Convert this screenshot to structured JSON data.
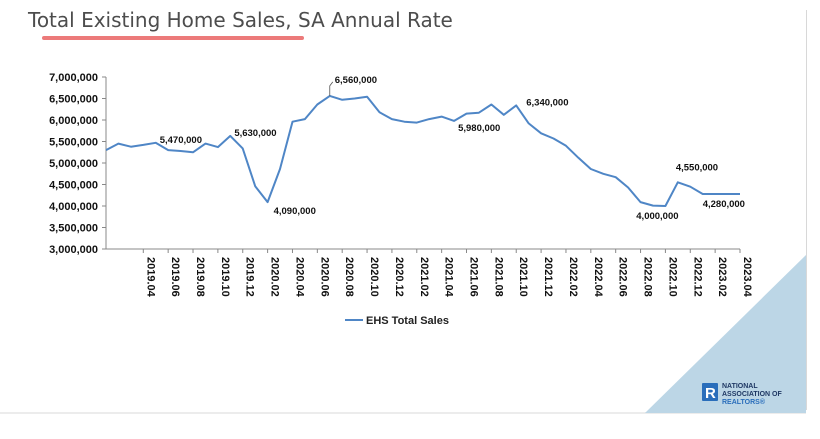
{
  "title": "Total Existing Home Sales, SA Annual Rate",
  "colors": {
    "series": "#4f86c6",
    "accent_underline": "#ec7a7a",
    "corner_triangle": "#bcd6e6",
    "logo_blue": "#2a6ebb"
  },
  "logo": {
    "lines": [
      "NATIONAL",
      "ASSOCIATION OF",
      "REALTORS®"
    ]
  },
  "chart_data": {
    "type": "line",
    "ylim": [
      3000000,
      7000000
    ],
    "yticks": [
      "3,000,000",
      "3,500,000",
      "4,000,000",
      "4,500,000",
      "5,000,000",
      "5,500,000",
      "6,000,000",
      "6,500,000",
      "7,000,000"
    ],
    "xticks": [
      "2019.04",
      "2019.06",
      "2019.08",
      "2019.10",
      "2019.12",
      "2020.02",
      "2020.04",
      "2020.06",
      "2020.08",
      "2020.10",
      "2020.12",
      "2021.02",
      "2021.04",
      "2021.06",
      "2021.08",
      "2021.10",
      "2021.12",
      "2022.02",
      "2022.04",
      "2022.06",
      "2022.08",
      "2022.10",
      "2022.12",
      "2023.02",
      "2023.04"
    ],
    "grid": false,
    "legend_position": "bottom",
    "series": [
      {
        "name": "EHS Total Sales",
        "x": [
          "2019.01",
          "2019.02",
          "2019.03",
          "2019.04",
          "2019.05",
          "2019.06",
          "2019.07",
          "2019.08",
          "2019.09",
          "2019.10",
          "2019.11",
          "2019.12",
          "2020.01",
          "2020.02",
          "2020.03",
          "2020.04",
          "2020.05",
          "2020.06",
          "2020.07",
          "2020.08",
          "2020.09",
          "2020.10",
          "2020.11",
          "2020.12",
          "2021.01",
          "2021.02",
          "2021.03",
          "2021.04",
          "2021.05",
          "2021.06",
          "2021.07",
          "2021.08",
          "2021.09",
          "2021.10",
          "2021.11",
          "2021.12",
          "2022.01",
          "2022.02",
          "2022.03",
          "2022.04",
          "2022.05",
          "2022.06",
          "2022.07",
          "2022.08",
          "2022.09",
          "2022.10",
          "2022.11",
          "2022.12",
          "2023.01",
          "2023.02",
          "2023.03",
          "2023.04"
        ],
        "values": [
          5300000,
          5450000,
          5380000,
          5420000,
          5470000,
          5300000,
          5280000,
          5250000,
          5450000,
          5370000,
          5630000,
          5340000,
          4460000,
          4090000,
          4860000,
          5960000,
          6020000,
          6360000,
          6560000,
          6470000,
          6500000,
          6540000,
          6180000,
          6020000,
          5960000,
          5940000,
          6020000,
          6080000,
          5980000,
          6150000,
          6170000,
          6360000,
          6120000,
          6340000,
          5920000,
          5690000,
          5570000,
          5400000,
          5120000,
          4860000,
          4750000,
          4670000,
          4430000,
          4090000,
          4010000,
          4000000,
          4550000,
          4450000,
          4280000,
          4280000,
          4280000,
          4280000
        ]
      }
    ],
    "annotations": [
      {
        "text": "5,470,000",
        "x_index": 4
      },
      {
        "text": "5,630,000",
        "x_index": 10
      },
      {
        "text": "4,090,000",
        "x_index": 13
      },
      {
        "text": "6,560,000",
        "x_index": 18
      },
      {
        "text": "5,980,000",
        "x_index": 28
      },
      {
        "text": "6,340,000",
        "x_index": 33
      },
      {
        "text": "4,000,000",
        "x_index": 45
      },
      {
        "text": "4,550,000",
        "x_index": 46
      },
      {
        "text": "4,280,000",
        "x_index": 48
      }
    ]
  }
}
